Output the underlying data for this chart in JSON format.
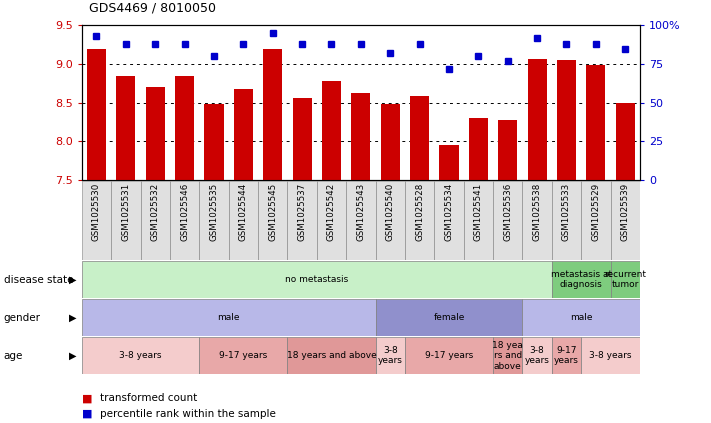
{
  "title": "GDS4469 / 8010050",
  "samples": [
    "GSM1025530",
    "GSM1025531",
    "GSM1025532",
    "GSM1025546",
    "GSM1025535",
    "GSM1025544",
    "GSM1025545",
    "GSM1025537",
    "GSM1025542",
    "GSM1025543",
    "GSM1025540",
    "GSM1025528",
    "GSM1025534",
    "GSM1025541",
    "GSM1025536",
    "GSM1025538",
    "GSM1025533",
    "GSM1025529",
    "GSM1025539"
  ],
  "bar_values": [
    9.2,
    8.85,
    8.7,
    8.85,
    8.48,
    8.67,
    9.2,
    8.56,
    8.78,
    8.62,
    8.48,
    8.58,
    7.95,
    8.3,
    8.27,
    9.06,
    9.05,
    8.99,
    8.5
  ],
  "dot_values": [
    93,
    88,
    88,
    88,
    80,
    88,
    95,
    88,
    88,
    88,
    82,
    88,
    72,
    80,
    77,
    92,
    88,
    88,
    85
  ],
  "ylim_left": [
    7.5,
    9.5
  ],
  "ylim_right": [
    0,
    100
  ],
  "yticks_left": [
    7.5,
    8.0,
    8.5,
    9.0,
    9.5
  ],
  "yticks_right": [
    0,
    25,
    50,
    75,
    100
  ],
  "ytick_labels_right": [
    "0",
    "25",
    "50",
    "75",
    "100%"
  ],
  "bar_color": "#cc0000",
  "dot_color": "#0000cc",
  "disease_state_groups": [
    {
      "label": "no metastasis",
      "start": 0,
      "end": 16,
      "color": "#c8f0c8"
    },
    {
      "label": "metastasis at\ndiagnosis",
      "start": 16,
      "end": 18,
      "color": "#7ecc7e"
    },
    {
      "label": "recurrent\ntumor",
      "start": 18,
      "end": 19,
      "color": "#7ecc7e"
    }
  ],
  "gender_groups": [
    {
      "label": "male",
      "start": 0,
      "end": 10,
      "color": "#b8b8e8"
    },
    {
      "label": "female",
      "start": 10,
      "end": 15,
      "color": "#9090cc"
    },
    {
      "label": "male",
      "start": 15,
      "end": 19,
      "color": "#b8b8e8"
    }
  ],
  "age_groups": [
    {
      "label": "3-8 years",
      "start": 0,
      "end": 4,
      "color": "#f4cccc"
    },
    {
      "label": "9-17 years",
      "start": 4,
      "end": 7,
      "color": "#e8a8a8"
    },
    {
      "label": "18 years and above",
      "start": 7,
      "end": 10,
      "color": "#e09898"
    },
    {
      "label": "3-8\nyears",
      "start": 10,
      "end": 11,
      "color": "#f4cccc"
    },
    {
      "label": "9-17 years",
      "start": 11,
      "end": 14,
      "color": "#e8a8a8"
    },
    {
      "label": "18 yea\nrs and\nabove",
      "start": 14,
      "end": 15,
      "color": "#e09898"
    },
    {
      "label": "3-8\nyears",
      "start": 15,
      "end": 16,
      "color": "#f4cccc"
    },
    {
      "label": "9-17\nyears",
      "start": 16,
      "end": 17,
      "color": "#e8a8a8"
    },
    {
      "label": "3-8 years",
      "start": 17,
      "end": 19,
      "color": "#f4cccc"
    }
  ],
  "row_labels": [
    "disease state",
    "gender",
    "age"
  ],
  "legend_items": [
    {
      "color": "#cc0000",
      "label": "transformed count"
    },
    {
      "color": "#0000cc",
      "label": "percentile rank within the sample"
    }
  ],
  "background_color": "#ffffff",
  "xtick_bg": "#e0e0e0"
}
